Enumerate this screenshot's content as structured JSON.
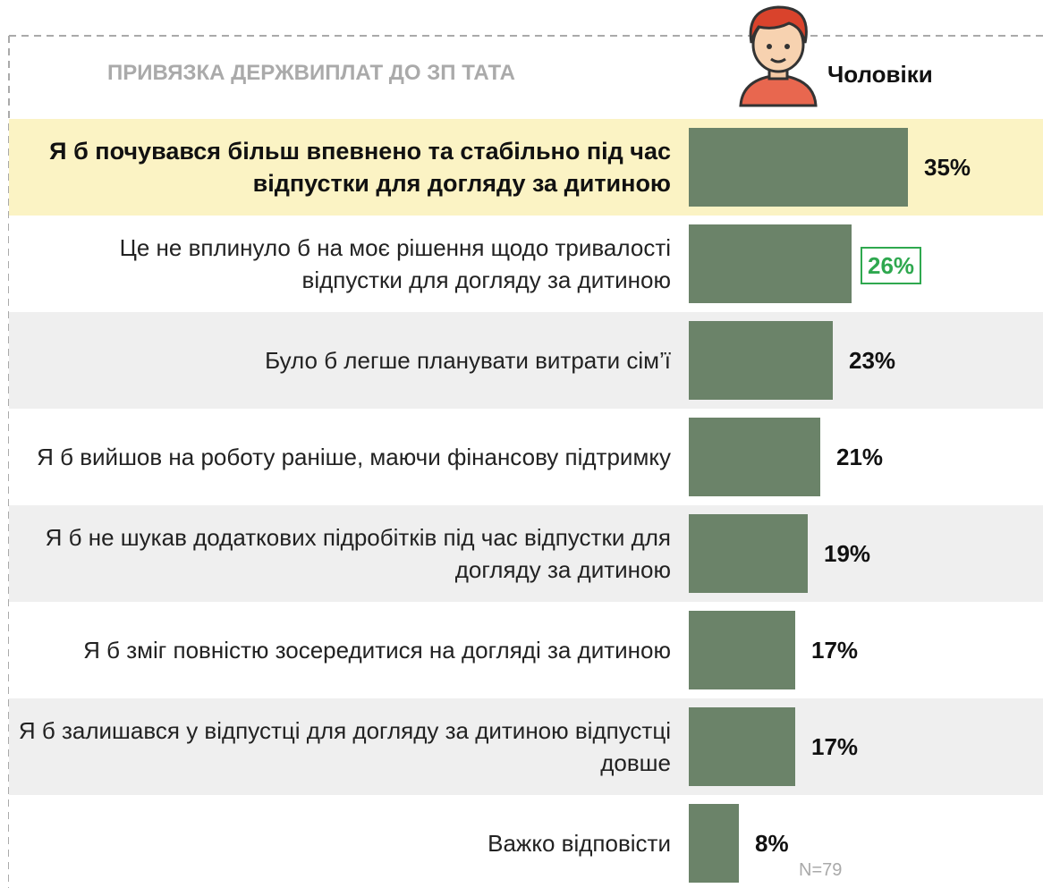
{
  "chart_data": {
    "type": "bar",
    "orientation": "horizontal",
    "title": "ПРИВЯЗКА ДЕРЖВИПЛАТ ДО ЗП ТАТА",
    "subtitle": "Чоловіки",
    "categories": [
      "Я б почувався більш впевнено та стабільно під час відпустки для догляду за дитиною",
      "Це не вплинуло б на моє рішення щодо тривалості відпустки для догляду за дитиною",
      "Було б легше планувати витрати сім’ї",
      "Я б вийшов на роботу раніше, маючи фінансову підтримку",
      "Я б не шукав додаткових підробітків під час відпустки для догляду за дитиною",
      "Я б зміг повністю зосередитися на догляді за дитиною",
      "Я б залишався у відпустці для догляду за дитиною відпустці довше",
      "Важко відповісти"
    ],
    "values": [
      35,
      26,
      23,
      21,
      19,
      17,
      17,
      8
    ],
    "value_labels": [
      "35%",
      "26%",
      "23%",
      "21%",
      "19%",
      "17%",
      "17%",
      "8%"
    ],
    "color": "#6b8369",
    "note": "N=79"
  }
}
